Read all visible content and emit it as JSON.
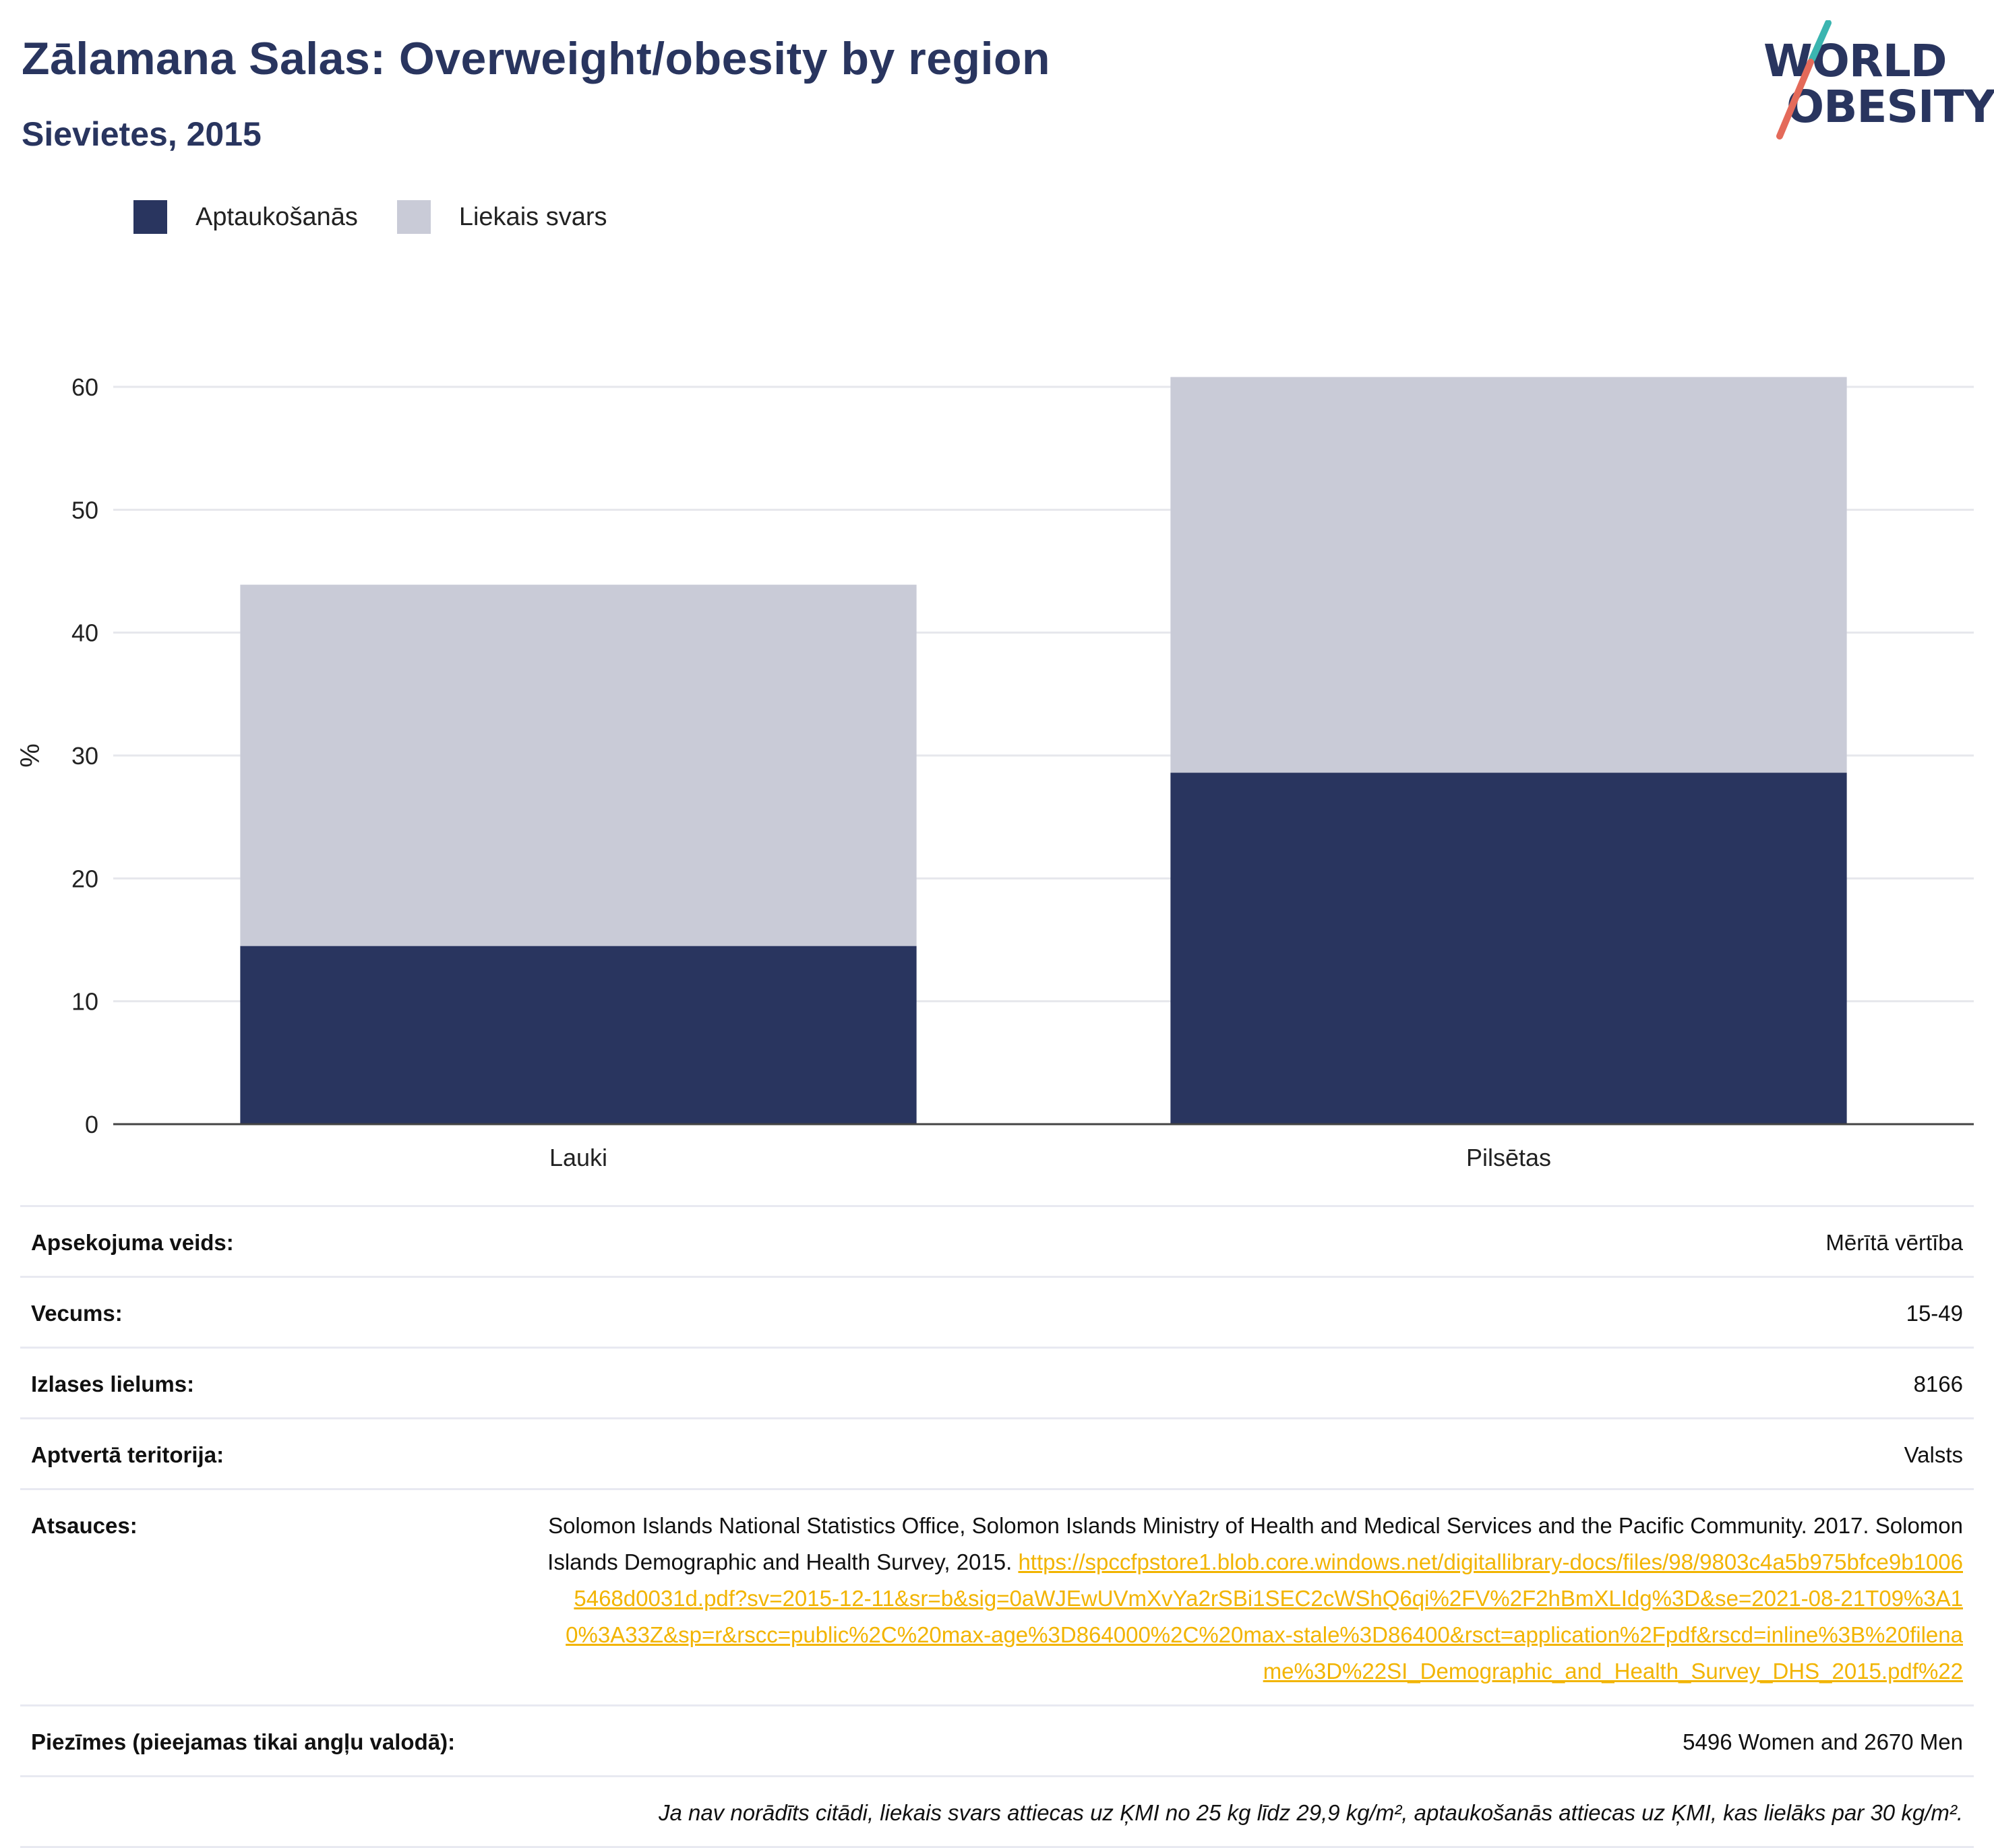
{
  "header": {
    "title": "Zālamana Salas: Overweight/obesity by region",
    "subtitle": "Sievietes, 2015"
  },
  "logo": {
    "line1": "WORLD",
    "line2": "OBESITY"
  },
  "colors": {
    "obesity": "#29355f",
    "overweight": "#c9cbd7",
    "accent_teal": "#3bb5b0",
    "accent_red": "#e46a5a",
    "link": "#f2b400"
  },
  "chart_data": {
    "type": "bar",
    "stacked": true,
    "categories": [
      "Lauki",
      "Pilsētas"
    ],
    "series": [
      {
        "name": "Aptaukošanās",
        "values": [
          14.5,
          28.6
        ]
      },
      {
        "name": "Liekais svars",
        "values": [
          29.4,
          32.2
        ]
      }
    ],
    "ylabel": "%",
    "ylim": [
      0,
      60
    ],
    "yticks": [
      0,
      10,
      20,
      30,
      40,
      50,
      60
    ],
    "grid": true,
    "legend_position": "top-left"
  },
  "info": {
    "survey_type_label": "Apsekojuma veids:",
    "survey_type_value": "Mērītā vērtība",
    "age_label": "Vecums:",
    "age_value": "15-49",
    "sample_label": "Izlases lielums:",
    "sample_value": "8166",
    "coverage_label": "Aptvertā teritorija:",
    "coverage_value": "Valsts",
    "refs_label": "Atsauces:",
    "refs_text": "Solomon Islands National Statistics Office, Solomon Islands Ministry of Health and Medical Services and the Pacific Community. 2017. Solomon Islands Demographic and Health Survey, 2015. ",
    "refs_link": "https://spccfpstore1.blob.core.windows.net/digitallibrary-docs/files/98/9803c4a5b975bfce9b10065468d0031d.pdf?sv=2015-12-11&sr=b&sig=0aWJEwUVmXvYa2rSBi1SEC2cWShQ6qi%2FV%2F2hBmXLIdg%3D&se=2021-08-21T09%3A10%3A33Z&sp=r&rscc=public%2C%20max-age%3D864000%2C%20max-stale%3D86400&rsct=application%2Fpdf&rscd=inline%3B%20filename%3D%22SI_Demographic_and_Health_Survey_DHS_2015.pdf%22",
    "notes_label": "Piezīmes (pieejamas tikai angļu valodā):",
    "notes_value": "5496 Women and 2670 Men",
    "footnote": "Ja nav norādīts citādi, liekais svars attiecas uz ĶMI no 25 kg līdz 29,9 kg/m², aptaukošanās attiecas uz ĶMI, kas lielāks par 30 kg/m²."
  }
}
